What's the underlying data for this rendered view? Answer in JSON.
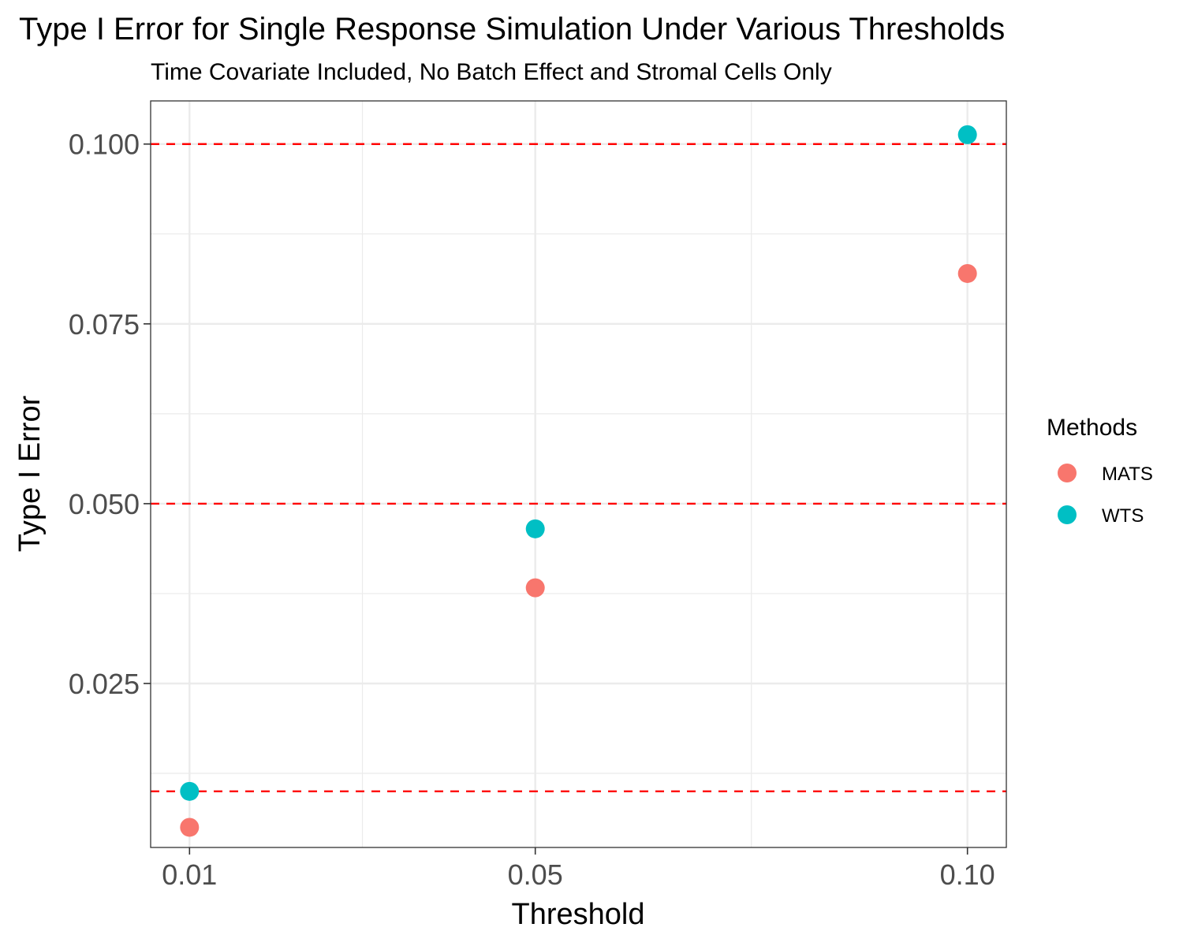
{
  "chart_data": {
    "type": "scatter",
    "title": "Type I Error for Single Response Simulation Under Various Thresholds",
    "subtitle": "Time Covariate Included, No Batch Effect and Stromal Cells Only",
    "xlabel": "Threshold",
    "ylabel": "Type I Error",
    "x_ticks": [
      "0.01",
      "0.05",
      "0.10"
    ],
    "x_tick_values": [
      0.01,
      0.05,
      0.1
    ],
    "y_ticks": [
      "0.025",
      "0.050",
      "0.075",
      "0.100"
    ],
    "y_tick_values": [
      0.025,
      0.05,
      0.075,
      0.1
    ],
    "xlim": [
      0.0055,
      0.1045
    ],
    "ylim": [
      0.0022,
      0.106
    ],
    "grid": true,
    "reference_lines": {
      "y": [
        0.01,
        0.05,
        0.1
      ],
      "color": "#ff0000",
      "style": "dashed"
    },
    "legend": {
      "title": "Methods",
      "position": "right"
    },
    "series": [
      {
        "name": "MATS",
        "color": "#F8766D",
        "points": [
          {
            "x": 0.01,
            "y": 0.005
          },
          {
            "x": 0.05,
            "y": 0.0383
          },
          {
            "x": 0.1,
            "y": 0.082
          }
        ]
      },
      {
        "name": "WTS",
        "color": "#00BFC4",
        "points": [
          {
            "x": 0.01,
            "y": 0.01
          },
          {
            "x": 0.05,
            "y": 0.0465
          },
          {
            "x": 0.1,
            "y": 0.1013
          }
        ]
      }
    ]
  }
}
